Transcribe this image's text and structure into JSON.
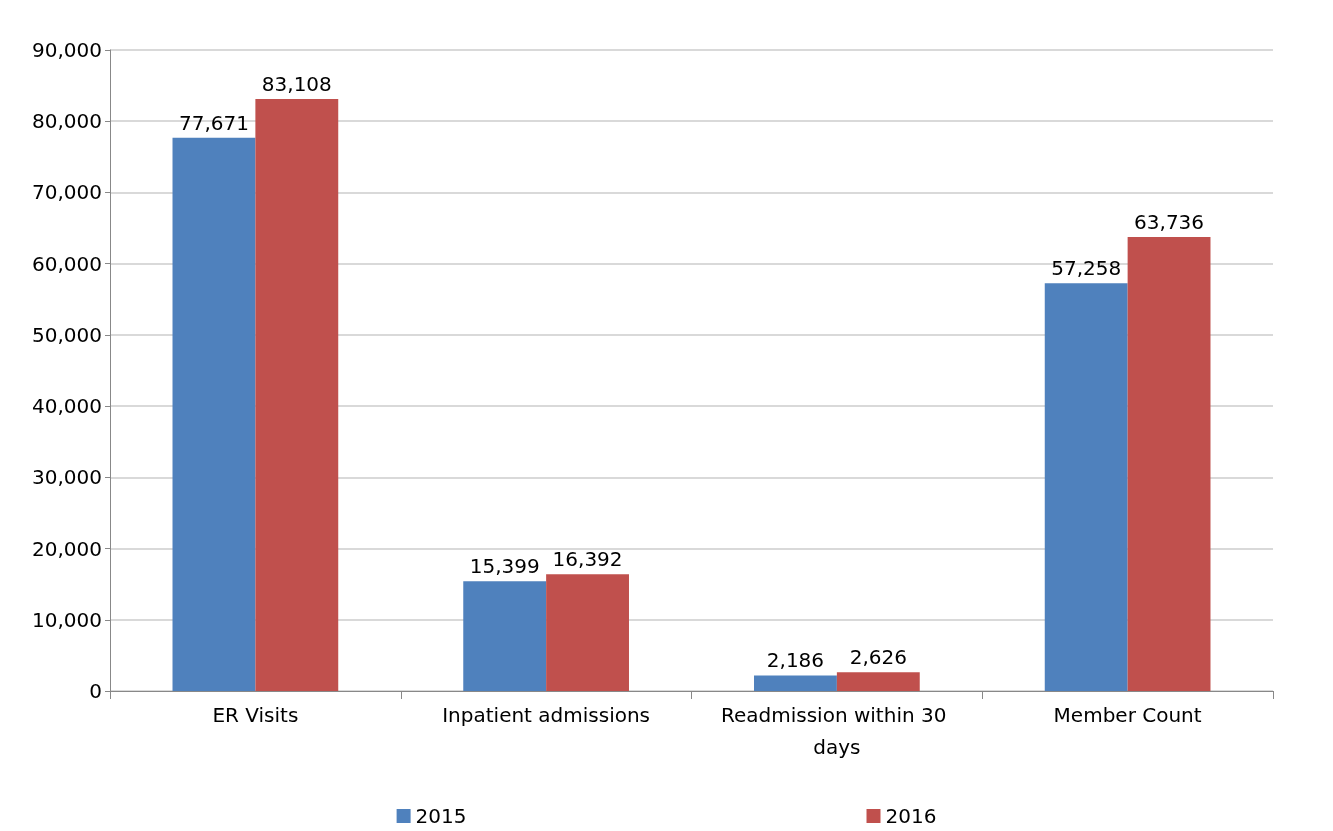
{
  "chart_data": {
    "type": "bar",
    "categories": [
      "ER Visits",
      "Inpatient admissions",
      "Readmission within 30 days",
      "Member Count"
    ],
    "series": [
      {
        "name": "2015",
        "color": "#4f81bd",
        "values": [
          77671,
          15399,
          2186,
          57258
        ],
        "value_labels": [
          "77,671",
          "15,399",
          "2,186",
          "57,258"
        ]
      },
      {
        "name": "2016",
        "color": "#c0504d",
        "values": [
          83108,
          16392,
          2626,
          63736
        ],
        "value_labels": [
          "83,108",
          "16,392",
          "2,626",
          "63,736"
        ]
      }
    ],
    "ylim": [
      0,
      90000
    ],
    "yticks": [
      {
        "value": 0,
        "label": "0"
      },
      {
        "value": 10000,
        "label": "10,000"
      },
      {
        "value": 20000,
        "label": "20,000"
      },
      {
        "value": 30000,
        "label": "30,000"
      },
      {
        "value": 40000,
        "label": "40,000"
      },
      {
        "value": 50000,
        "label": "50,000"
      },
      {
        "value": 60000,
        "label": "60,000"
      },
      {
        "value": 70000,
        "label": "70,000"
      },
      {
        "value": 80000,
        "label": "80,000"
      },
      {
        "value": 90000,
        "label": "90,000"
      }
    ],
    "grid": "y",
    "legend": "bottom"
  }
}
